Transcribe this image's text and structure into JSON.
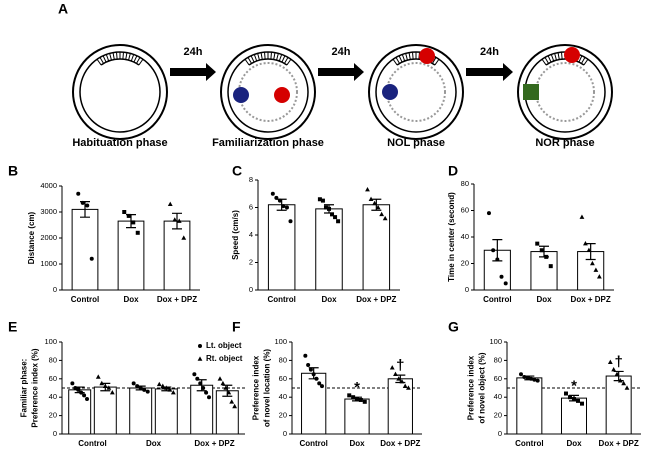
{
  "diagram": {
    "label": "A",
    "arrows": [
      "24h",
      "24h",
      "24h"
    ],
    "phases": [
      "Habituation phase",
      "Familiarization phase",
      "NOL phase",
      "NOR phase"
    ]
  },
  "chart_data": [
    {
      "type": "bar",
      "label": "B",
      "ylabel": [
        "Distance (cm)"
      ],
      "categories": [
        "Control",
        "Dox",
        "Dox + DPZ"
      ],
      "markers": [
        "circle",
        "square",
        "triangle"
      ],
      "series": [
        {
          "color": "#ffffff",
          "values": [
            3100,
            2650,
            2650
          ],
          "errors": [
            300,
            250,
            300
          ],
          "points": [
            [
              3700,
              3350,
              3250,
              1200
            ],
            [
              3000,
              2850,
              2600,
              2200
            ],
            [
              3300,
              2700,
              2650,
              2000
            ]
          ]
        }
      ],
      "ylim": [
        0,
        4000
      ],
      "yticks": [
        0,
        1000,
        2000,
        3000,
        4000
      ]
    },
    {
      "type": "bar",
      "label": "C",
      "ylabel": [
        "Speed (cm/s)"
      ],
      "categories": [
        "Control",
        "Dox",
        "Dox + DPZ"
      ],
      "markers": [
        "circle",
        "square",
        "triangle"
      ],
      "series": [
        {
          "color": "#ffffff",
          "values": [
            6.2,
            5.9,
            6.2
          ],
          "errors": [
            0.4,
            0.3,
            0.4
          ],
          "points": [
            [
              7.0,
              6.7,
              6.5,
              6.1,
              6.0,
              5.0
            ],
            [
              6.6,
              6.5,
              6.0,
              5.9,
              5.5,
              5.3,
              5.0
            ],
            [
              7.3,
              6.6,
              6.3,
              6.0,
              5.5,
              5.2
            ]
          ]
        }
      ],
      "ylim": [
        0,
        8
      ],
      "yticks": [
        0,
        2,
        4,
        6,
        8
      ]
    },
    {
      "type": "bar",
      "label": "D",
      "ylabel": [
        "Time in center (second)"
      ],
      "categories": [
        "Control",
        "Dox",
        "Dox + DPZ"
      ],
      "markers": [
        "circle",
        "square",
        "triangle"
      ],
      "series": [
        {
          "color": "#ffffff",
          "values": [
            30,
            29,
            29
          ],
          "errors": [
            8,
            4,
            6
          ],
          "points": [
            [
              58,
              30,
              23,
              10,
              5
            ],
            [
              35,
              30,
              25,
              18
            ],
            [
              55,
              35,
              30,
              20,
              15,
              10
            ]
          ]
        }
      ],
      "ylim": [
        0,
        80
      ],
      "yticks": [
        0,
        20,
        40,
        60,
        80
      ]
    },
    {
      "type": "bar",
      "label": "E",
      "ylabel": [
        "Familiar phase:",
        "Preference index (%)"
      ],
      "categories": [
        "Control",
        "Dox",
        "Dox + DPZ"
      ],
      "refline": 50,
      "legend": "top-right",
      "series": [
        {
          "name": "Lt. object",
          "marker": "circle",
          "color": "#ffffff",
          "values": [
            48,
            50,
            53
          ],
          "errors": [
            3,
            2,
            6
          ],
          "points": [
            [
              55,
              50,
              48,
              45,
              42,
              38
            ],
            [
              55,
              52,
              50,
              48,
              46
            ],
            [
              65,
              60,
              55,
              50,
              45,
              40
            ]
          ]
        },
        {
          "name": "Rt. object",
          "marker": "triangle",
          "color": "#ffffff",
          "values": [
            51,
            49,
            47
          ],
          "errors": [
            4,
            2,
            6
          ],
          "points": [
            [
              62,
              55,
              52,
              50,
              45
            ],
            [
              54,
              52,
              50,
              48,
              45
            ],
            [
              60,
              55,
              50,
              45,
              35,
              30
            ]
          ]
        }
      ],
      "ylim": [
        0,
        100
      ],
      "yticks": [
        0,
        20,
        40,
        60,
        80,
        100
      ]
    },
    {
      "type": "bar",
      "label": "F",
      "ylabel": [
        "Preference index",
        "of novel location (%)"
      ],
      "categories": [
        "Control",
        "Dox",
        "Dox + DPZ"
      ],
      "markers": [
        "circle",
        "square",
        "triangle"
      ],
      "refline": 50,
      "significance": [
        null,
        "*",
        "†"
      ],
      "series": [
        {
          "color": "#ffffff",
          "values": [
            66,
            38,
            60
          ],
          "errors": [
            6,
            2,
            4
          ],
          "points": [
            [
              85,
              75,
              70,
              65,
              60,
              55,
              52
            ],
            [
              42,
              40,
              38,
              37,
              35
            ],
            [
              72,
              65,
              60,
              57,
              52,
              50
            ]
          ]
        }
      ],
      "ylim": [
        0,
        100
      ],
      "yticks": [
        0,
        20,
        40,
        60,
        80,
        100
      ]
    },
    {
      "type": "bar",
      "label": "G",
      "ylabel": [
        "Preference index",
        "of novel object (%)"
      ],
      "categories": [
        "Control",
        "Dox",
        "Dox + DPZ"
      ],
      "markers": [
        "circle",
        "square",
        "triangle"
      ],
      "refline": 50,
      "significance": [
        null,
        "*",
        "†"
      ],
      "series": [
        {
          "color": "#ffffff",
          "values": [
            61,
            39,
            63
          ],
          "errors": [
            2,
            3,
            5
          ],
          "points": [
            [
              65,
              62,
              61,
              60,
              59,
              58
            ],
            [
              44,
              40,
              38,
              36,
              33
            ],
            [
              78,
              70,
              65,
              58,
              55,
              50
            ]
          ]
        }
      ],
      "ylim": [
        0,
        100
      ],
      "yticks": [
        0,
        20,
        40,
        60,
        80,
        100
      ]
    }
  ]
}
